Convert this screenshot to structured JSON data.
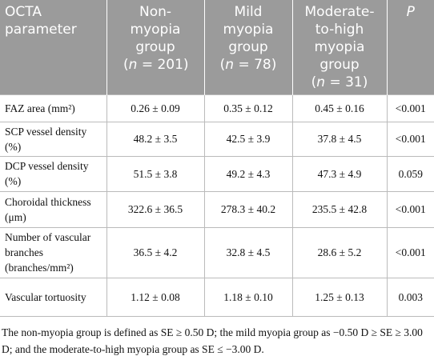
{
  "table": {
    "header": [
      [
        "OCTA parameter"
      ],
      [
        "Non-myopia group",
        "(",
        "n",
        " = 201)"
      ],
      [
        "Mild myopia group",
        "(",
        "n",
        " = 78)"
      ],
      [
        "Moderate-to-high myopia group",
        "(",
        "n",
        " = 31)"
      ],
      [
        "P"
      ]
    ],
    "rows": [
      [
        "FAZ area (mm²)",
        "0.26 ± 0.09",
        "0.35 ± 0.12",
        "0.45 ± 0.16",
        "<0.001"
      ],
      [
        "SCP vessel density (%)",
        "48.2 ± 3.5",
        "42.5 ± 3.9",
        "37.8 ± 4.5",
        "<0.001"
      ],
      [
        "DCP vessel density (%)",
        "51.5 ± 3.8",
        "49.2 ± 4.3",
        "47.3 ± 4.9",
        "0.059"
      ],
      [
        "Choroidal thickness (μm)",
        "322.6 ± 36.5",
        "278.3 ± 40.2",
        "235.5 ± 42.8",
        "<0.001"
      ],
      [
        "Number of vascular branches (branches/mm²)",
        "36.5 ± 4.2",
        "32.8 ± 4.5",
        "28.6 ± 5.2",
        "<0.001"
      ],
      [
        "Vascular tortuosity",
        "1.12 ± 0.08",
        "1.18 ± 0.10",
        "1.25 ± 0.13",
        "0.003"
      ]
    ]
  },
  "footnote": "The non-myopia group is defined as SE ≥ 0.50 D; the mild myopia group as −0.50 D ≥ SE ≥ 3.00 D; and the moderate-to-high myopia group as SE ≤ −3.00 D."
}
